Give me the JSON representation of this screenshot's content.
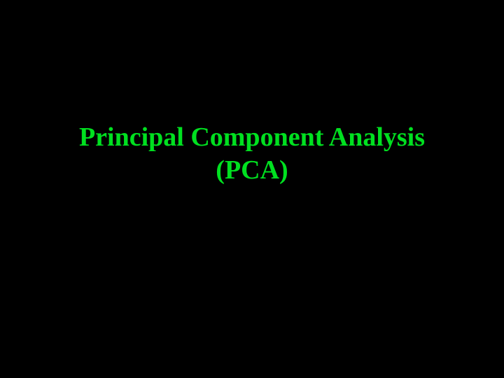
{
  "slide": {
    "title_line1": "Principal Component Analysis",
    "title_line2": "(PCA)",
    "background_color": "#000000",
    "text_color": "#00e020",
    "font_family": "Comic Sans MS",
    "font_size_pt": 38,
    "font_weight": "bold"
  }
}
